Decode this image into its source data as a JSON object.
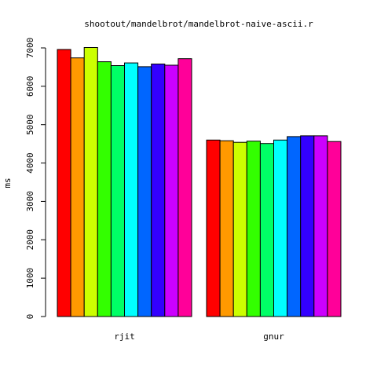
{
  "chart_data": {
    "type": "bar",
    "title": "shootout/mandelbrot/mandelbrot-naive-ascii.r",
    "xlabel": "",
    "ylabel": "ms",
    "ylim": [
      0,
      7000
    ],
    "yticks": [
      0,
      1000,
      2000,
      3000,
      4000,
      5000,
      6000,
      7000
    ],
    "grid": false,
    "legend": "none",
    "categories": [
      "rjit",
      "gnur"
    ],
    "colors": [
      "#FF0000",
      "#FF9900",
      "#CCFF00",
      "#33FF00",
      "#00FF66",
      "#00FFFF",
      "#0066FF",
      "#3300FF",
      "#CC00FF",
      "#FF0099"
    ],
    "groups": [
      {
        "label": "rjit",
        "values": [
          6960,
          6740,
          7010,
          6640,
          6540,
          6610,
          6510,
          6580,
          6550,
          6720
        ]
      },
      {
        "label": "gnur",
        "values": [
          4600,
          4580,
          4540,
          4570,
          4510,
          4600,
          4690,
          4710,
          4710,
          4560
        ]
      }
    ]
  }
}
